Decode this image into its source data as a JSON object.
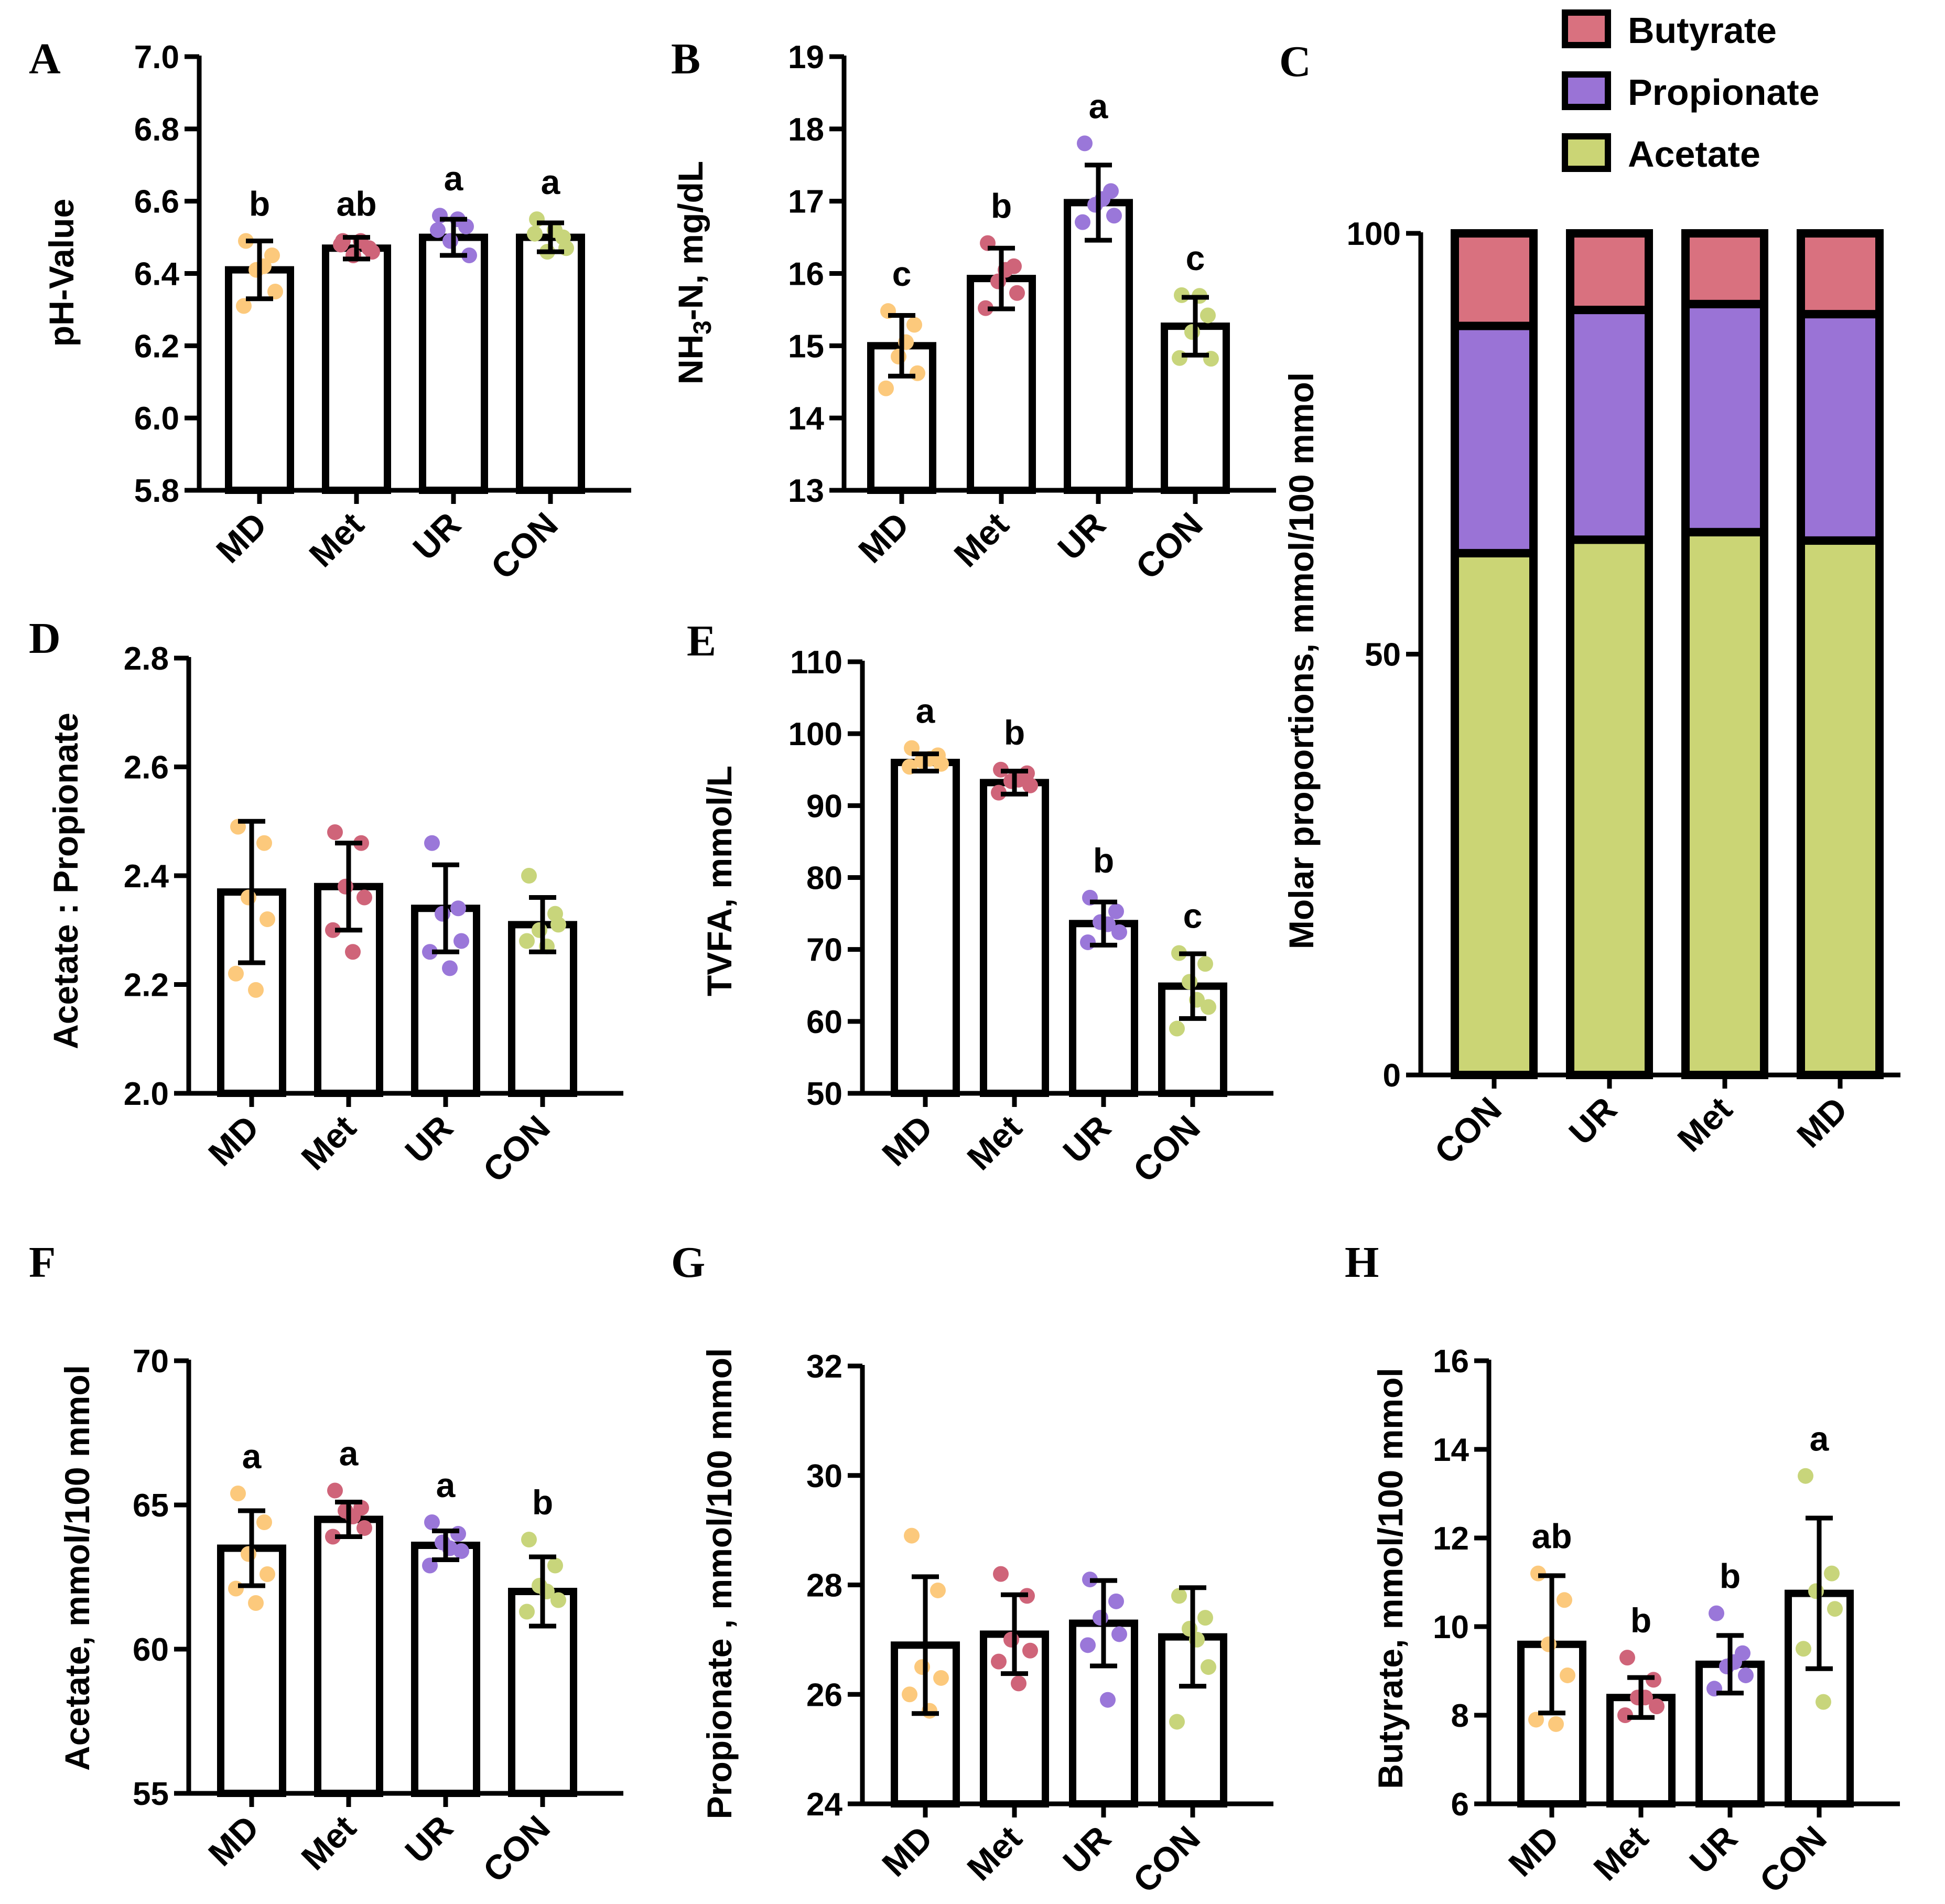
{
  "colors": {
    "MD": "#fcc97c",
    "Met": "#cf6479",
    "UR": "#9a77d9",
    "CON": "#c8d57b",
    "Butyrate": "#d9717f",
    "Propionate": "#9a73d6",
    "Acetate": "#cbd575"
  },
  "chart_data": [
    {
      "id": "A",
      "panel_label": "A",
      "type": "bar",
      "ylabel": "pH-Value",
      "ylim": [
        5.8,
        7.0
      ],
      "yticks": [
        "5.8",
        "6.0",
        "6.2",
        "6.4",
        "6.6",
        "6.8",
        "7.0"
      ],
      "categories": [
        "MD",
        "Met",
        "UR",
        "CON"
      ],
      "values": [
        6.41,
        6.47,
        6.5,
        6.5
      ],
      "errors": [
        0.08,
        0.03,
        0.05,
        0.04
      ],
      "letters": [
        "b",
        "ab",
        "a",
        "a"
      ],
      "points": [
        [
          6.49,
          6.45,
          6.41,
          6.35,
          6.31,
          6.42
        ],
        [
          6.49,
          6.47,
          6.45,
          6.46,
          6.48,
          6.49
        ],
        [
          6.56,
          6.53,
          6.49,
          6.45,
          6.52,
          6.55
        ],
        [
          6.55,
          6.5,
          6.46,
          6.47,
          6.51,
          6.52
        ]
      ]
    },
    {
      "id": "B",
      "panel_label": "B",
      "type": "bar",
      "ylabel": "NH",
      "ylabel_sub": "3",
      "ylabel_rest": "-N, mg/dL",
      "ylim": [
        13,
        19
      ],
      "yticks": [
        "13",
        "14",
        "15",
        "16",
        "17",
        "18",
        "19"
      ],
      "categories": [
        "MD",
        "Met",
        "UR",
        "CON"
      ],
      "values": [
        15.0,
        15.93,
        16.98,
        15.27
      ],
      "errors": [
        0.42,
        0.42,
        0.52,
        0.4
      ],
      "letters": [
        "c",
        "b",
        "a",
        "c"
      ],
      "points": [
        [
          15.48,
          15.29,
          14.85,
          14.62,
          14.41,
          15.05
        ],
        [
          16.42,
          16.1,
          15.89,
          15.73,
          15.52,
          16.05
        ],
        [
          17.8,
          17.14,
          16.95,
          16.8,
          16.71,
          17.03
        ],
        [
          15.7,
          15.42,
          15.19,
          14.82,
          14.83,
          15.69
        ]
      ]
    },
    {
      "id": "C",
      "panel_label": "C",
      "type": "bar",
      "stacked": true,
      "ylabel": "Molar proportions, mmol/100 mmol",
      "ylim": [
        0,
        100
      ],
      "yticks": [
        "0",
        "50",
        "100"
      ],
      "categories": [
        "CON",
        "UR",
        "Met",
        "MD"
      ],
      "series": [
        {
          "name": "Acetate",
          "values": [
            62,
            63.6,
            64.5,
            63.5
          ]
        },
        {
          "name": "Propionate",
          "values": [
            27,
            27.3,
            27.1,
            26.9
          ]
        },
        {
          "name": "Butyrate",
          "values": [
            11,
            9.1,
            8.4,
            9.6
          ]
        }
      ],
      "legend": [
        "Butyrate",
        "Propionate",
        "Acetate"
      ]
    },
    {
      "id": "D",
      "panel_label": "D",
      "type": "bar",
      "ylabel": "Acetate : Propionate",
      "ylim": [
        2.0,
        2.8
      ],
      "yticks": [
        "2.0",
        "2.2",
        "2.4",
        "2.6",
        "2.8"
      ],
      "categories": [
        "MD",
        "Met",
        "UR",
        "CON"
      ],
      "values": [
        2.37,
        2.38,
        2.34,
        2.31
      ],
      "errors": [
        0.13,
        0.08,
        0.08,
        0.05
      ],
      "letters": [
        "",
        "",
        "",
        ""
      ],
      "points": [
        [
          2.49,
          2.46,
          2.36,
          2.32,
          2.22,
          2.19
        ],
        [
          2.48,
          2.46,
          2.38,
          2.36,
          2.3,
          2.26
        ],
        [
          2.46,
          2.34,
          2.33,
          2.28,
          2.26,
          2.23
        ],
        [
          2.4,
          2.33,
          2.3,
          2.31,
          2.28,
          2.27
        ]
      ]
    },
    {
      "id": "E",
      "panel_label": "E",
      "type": "bar",
      "ylabel": "TVFA, mmol/L",
      "ylim": [
        50,
        110
      ],
      "yticks": [
        "50",
        "60",
        "70",
        "80",
        "90",
        "100",
        "110"
      ],
      "categories": [
        "MD",
        "Met",
        "UR",
        "CON"
      ],
      "values": [
        96.0,
        93.2,
        73.6,
        64.9
      ],
      "errors": [
        1.2,
        1.6,
        3.0,
        4.5
      ],
      "letters": [
        "a",
        "b",
        "b",
        "c"
      ],
      "points": [
        [
          98.0,
          97.0,
          96.2,
          95.8,
          95.4,
          96.5
        ],
        [
          95.0,
          94.5,
          93.4,
          92.8,
          91.8,
          93.6
        ],
        [
          77.2,
          75.3,
          73.8,
          72.4,
          71.0,
          73.5
        ],
        [
          69.5,
          68.0,
          65.5,
          62.0,
          59.0,
          63.0
        ]
      ]
    },
    {
      "id": "F",
      "panel_label": "F",
      "type": "bar",
      "ylabel": "Acetate, mmol/100 mmol",
      "ylim": [
        55,
        70
      ],
      "yticks": [
        "55",
        "60",
        "65",
        "70"
      ],
      "categories": [
        "MD",
        "Met",
        "UR",
        "CON"
      ],
      "values": [
        63.5,
        64.5,
        63.6,
        62.0
      ],
      "errors": [
        1.3,
        0.6,
        0.5,
        1.2
      ],
      "letters": [
        "a",
        "a",
        "a",
        "b"
      ],
      "points": [
        [
          65.4,
          64.4,
          63.3,
          62.6,
          62.1,
          61.6
        ],
        [
          65.5,
          64.9,
          64.8,
          64.2,
          63.9,
          64.6
        ],
        [
          64.4,
          64.0,
          63.7,
          63.4,
          62.9,
          63.5
        ],
        [
          63.8,
          62.9,
          62.2,
          61.7,
          61.3,
          62.0
        ]
      ]
    },
    {
      "id": "G",
      "panel_label": "G",
      "type": "bar",
      "ylabel": "Propionate , mmol/100 mmol",
      "ylim": [
        24,
        32
      ],
      "yticks": [
        "24",
        "26",
        "28",
        "30",
        "32"
      ],
      "categories": [
        "MD",
        "Met",
        "UR",
        "CON"
      ],
      "values": [
        26.9,
        27.1,
        27.3,
        27.05
      ],
      "errors": [
        1.25,
        0.72,
        0.78,
        0.9
      ],
      "letters": [
        "",
        "",
        "",
        ""
      ],
      "points": [
        [
          28.9,
          27.9,
          26.5,
          26.3,
          26.0,
          25.7
        ],
        [
          28.2,
          27.8,
          27.0,
          26.8,
          26.6,
          26.2
        ],
        [
          28.1,
          27.7,
          27.4,
          27.1,
          26.9,
          25.9
        ],
        [
          27.8,
          27.4,
          27.2,
          26.5,
          25.5,
          27.0
        ]
      ]
    },
    {
      "id": "H",
      "panel_label": "H",
      "type": "bar",
      "ylabel": "Butyrate, mmol/100 mmol",
      "ylim": [
        6,
        16
      ],
      "yticks": [
        "6",
        "8",
        "10",
        "12",
        "14",
        "16"
      ],
      "categories": [
        "MD",
        "Met",
        "UR",
        "CON"
      ],
      "values": [
        9.6,
        8.4,
        9.15,
        10.75
      ],
      "errors": [
        1.55,
        0.45,
        0.65,
        1.7
      ],
      "letters": [
        "ab",
        "b",
        "b",
        "a"
      ],
      "points": [
        [
          11.2,
          10.6,
          9.6,
          8.9,
          7.9,
          7.8
        ],
        [
          9.3,
          8.8,
          8.4,
          8.2,
          8.0,
          8.4
        ],
        [
          10.3,
          9.4,
          9.1,
          8.9,
          8.6,
          9.2
        ],
        [
          13.4,
          11.2,
          10.8,
          10.4,
          9.5,
          8.3
        ]
      ]
    }
  ]
}
